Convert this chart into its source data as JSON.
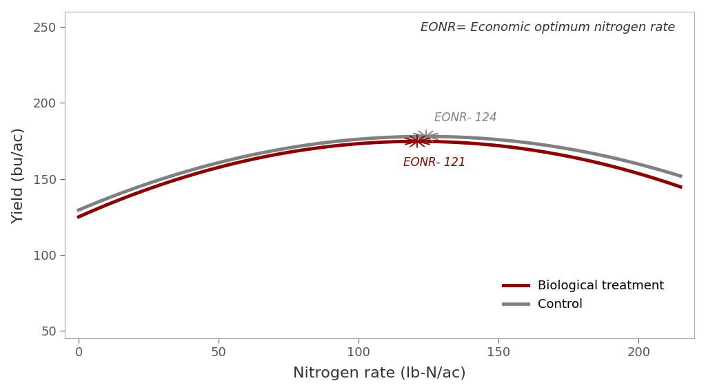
{
  "title_annotation": "EONR= Economic optimum nitrogen rate",
  "xlabel": "Nitrogen rate (lb-N/ac)",
  "ylabel": "Yield (bu/ac)",
  "xlim": [
    -5,
    220
  ],
  "ylim": [
    45,
    260
  ],
  "yticks": [
    50,
    100,
    150,
    200,
    250
  ],
  "xticks": [
    0,
    50,
    100,
    150,
    200
  ],
  "bio_color": "#8B0000",
  "control_color": "#808080",
  "bio_label": "Biological treatment",
  "control_label": "Control",
  "eonr_bio": 121,
  "eonr_control": 124,
  "eonr_bio_label": "EONR- 121",
  "eonr_control_label": "EONR- 124",
  "background_color": "#ffffff",
  "bio_coeffs": [
    125.0,
    0.82,
    -0.003388
  ],
  "control_coeffs": [
    129.5,
    0.78,
    -0.003145
  ],
  "line_width": 3.5
}
